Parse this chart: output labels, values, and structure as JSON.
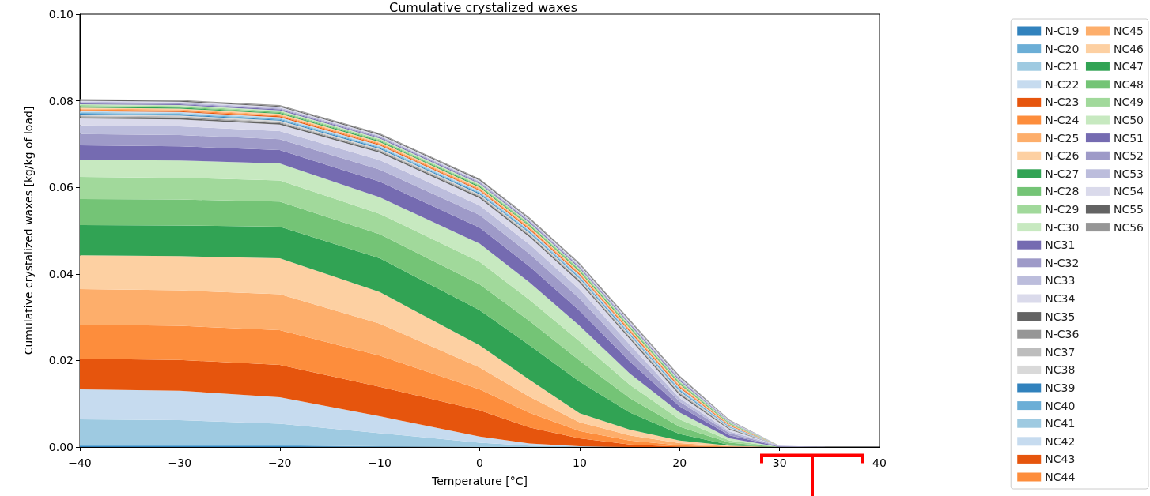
{
  "chart_data": {
    "type": "area",
    "stacked": true,
    "title": "Cumulative crystalized waxes",
    "xlabel": "Temperature [°C]",
    "ylabel": "Cumulative crystalized waxes [kg/kg of load]",
    "x": [
      -40,
      -30,
      -20,
      -10,
      0,
      5,
      10,
      15,
      20,
      25,
      30,
      35,
      40
    ],
    "xlim": [
      -40,
      40
    ],
    "xticks": [
      {
        "value": -40,
        "label": "−40"
      },
      {
        "value": -30,
        "label": "−30"
      },
      {
        "value": -20,
        "label": "−20"
      },
      {
        "value": -10,
        "label": "−10"
      },
      0,
      10,
      20,
      30,
      40
    ],
    "ylim": [
      0,
      0.1
    ],
    "yticks": [
      {
        "value": 0,
        "label": "0.00"
      },
      {
        "value": 0.02,
        "label": "0.02"
      },
      {
        "value": 0.04,
        "label": "0.04"
      },
      {
        "value": 0.06,
        "label": "0.06"
      },
      {
        "value": 0.08,
        "label": "0.08"
      },
      {
        "value": 0.1,
        "label": "0.10"
      }
    ],
    "grid": false,
    "legend": "right",
    "series": [
      {
        "name": "N-C19",
        "color": "#3182bd",
        "values": [
          0.0002,
          0.0002,
          0.0002,
          0.0001,
          0,
          0,
          0,
          0,
          0,
          0,
          0,
          0,
          0
        ]
      },
      {
        "name": "N-C20",
        "color": "#6baed6",
        "values": [
          0.0002,
          0.0002,
          0.0002,
          0.0001,
          0,
          0,
          0,
          0,
          0,
          0,
          0,
          0,
          0
        ]
      },
      {
        "name": "N-C21",
        "color": "#9ecae1",
        "values": [
          0.006,
          0.0058,
          0.005,
          0.003,
          0.001,
          0.0003,
          0.0001,
          0,
          0,
          0,
          0,
          0,
          0
        ]
      },
      {
        "name": "N-C22",
        "color": "#c6dbef",
        "values": [
          0.0069,
          0.0068,
          0.0061,
          0.0039,
          0.0014,
          0.0005,
          0.0001,
          0,
          0,
          0,
          0,
          0,
          0
        ]
      },
      {
        "name": "N-C23",
        "color": "#e6550d",
        "values": [
          0.0071,
          0.0071,
          0.0075,
          0.0068,
          0.0061,
          0.0037,
          0.0018,
          0.0006,
          0.0001,
          0,
          0,
          0,
          0
        ]
      },
      {
        "name": "N-C24",
        "color": "#fd8d3c",
        "values": [
          0.0079,
          0.0079,
          0.008,
          0.0072,
          0.0048,
          0.0034,
          0.0017,
          0.0009,
          0.0003,
          0.0001,
          0,
          0,
          0
        ]
      },
      {
        "name": "N-C25",
        "color": "#fdae6b",
        "values": [
          0.0082,
          0.0082,
          0.0083,
          0.0074,
          0.0051,
          0.0037,
          0.002,
          0.0012,
          0.0005,
          0.0001,
          0,
          0,
          0
        ]
      },
      {
        "name": "N-C26",
        "color": "#fdd0a2",
        "values": [
          0.0078,
          0.0079,
          0.0083,
          0.0073,
          0.0051,
          0.0039,
          0.0021,
          0.0013,
          0.0006,
          0.0001,
          0,
          0,
          0
        ]
      },
      {
        "name": "N-C27",
        "color": "#31a354",
        "values": [
          0.007,
          0.0071,
          0.0073,
          0.0078,
          0.0081,
          0.008,
          0.0073,
          0.004,
          0.0015,
          0.0002,
          0,
          0,
          0
        ]
      },
      {
        "name": "N-C28",
        "color": "#74c476",
        "values": [
          0.006,
          0.006,
          0.0058,
          0.0056,
          0.006,
          0.0056,
          0.0049,
          0.0033,
          0.0017,
          0.0005,
          0,
          0,
          0
        ]
      },
      {
        "name": "N-C29",
        "color": "#a1d99b",
        "values": [
          0.0051,
          0.005,
          0.0049,
          0.0047,
          0.0052,
          0.0049,
          0.0044,
          0.0031,
          0.0017,
          0.0005,
          0,
          0,
          0
        ]
      },
      {
        "name": "N-C30",
        "color": "#c7e9c0",
        "values": [
          0.004,
          0.004,
          0.0039,
          0.0038,
          0.0042,
          0.004,
          0.0036,
          0.0026,
          0.0016,
          0.0005,
          0,
          0,
          0
        ]
      },
      {
        "name": "NC31",
        "color": "#756bb1",
        "values": [
          0.0033,
          0.0033,
          0.0031,
          0.0036,
          0.0037,
          0.0037,
          0.0035,
          0.0028,
          0.0014,
          0.0007,
          0.0001,
          0,
          0
        ]
      },
      {
        "name": "N-C32",
        "color": "#9e9ac8",
        "values": [
          0.0026,
          0.0026,
          0.0025,
          0.0028,
          0.0029,
          0.0029,
          0.0028,
          0.0022,
          0.0011,
          0.0005,
          0.0001,
          0,
          0
        ]
      },
      {
        "name": "NC33",
        "color": "#bcbddc",
        "values": [
          0.002,
          0.002,
          0.0019,
          0.0022,
          0.0022,
          0.0022,
          0.0021,
          0.0017,
          0.0008,
          0.0004,
          0.0001,
          0,
          0
        ]
      },
      {
        "name": "NC34",
        "color": "#dadaeb",
        "values": [
          0.0016,
          0.0016,
          0.0015,
          0.0017,
          0.0017,
          0.0017,
          0.0016,
          0.0013,
          0.0007,
          0.0004,
          0,
          0,
          0
        ]
      },
      {
        "name": "NC35",
        "color": "#636363",
        "values": [
          0.0003,
          0.0003,
          0.0003,
          0.0003,
          0.0003,
          0.0003,
          0.0003,
          0.0003,
          0.0003,
          0.0002,
          0,
          0,
          0
        ]
      },
      {
        "name": "N-C36",
        "color": "#969696",
        "values": [
          0.0002,
          0.0002,
          0.0002,
          0.0002,
          0.0002,
          0.0002,
          0.0002,
          0.0002,
          0.0002,
          0.0001,
          0,
          0,
          0
        ]
      },
      {
        "name": "NC37",
        "color": "#bdbdbd",
        "values": [
          0.0002,
          0.0002,
          0.0002,
          0.0002,
          0.0002,
          0.0002,
          0.0002,
          0.0002,
          0.0002,
          0.0001,
          0,
          0,
          0
        ]
      },
      {
        "name": "NC38",
        "color": "#d9d9d9",
        "values": [
          0.0002,
          0.0002,
          0.0002,
          0.0002,
          0.0002,
          0.0002,
          0.0002,
          0.0002,
          0.0002,
          0.0001,
          0,
          0,
          0
        ]
      },
      {
        "name": "NC39",
        "color": "#3182bd",
        "values": [
          0.0002,
          0.0002,
          0.0002,
          0.0002,
          0.0002,
          0.0002,
          0.0002,
          0.0002,
          0.0002,
          0.0001,
          0,
          0,
          0
        ]
      },
      {
        "name": "NC40",
        "color": "#6baed6",
        "values": [
          0.0002,
          0.0002,
          0.0002,
          0.0002,
          0.0002,
          0.0002,
          0.0002,
          0.0002,
          0.0002,
          0.0001,
          0,
          0,
          0
        ]
      },
      {
        "name": "NC41",
        "color": "#9ecae1",
        "values": [
          0.0002,
          0.0002,
          0.0002,
          0.0002,
          0.0002,
          0.0002,
          0.0002,
          0.0002,
          0.0002,
          0.0001,
          0,
          0,
          0
        ]
      },
      {
        "name": "NC42",
        "color": "#c6dbef",
        "values": [
          0.0002,
          0.0002,
          0.0002,
          0.0002,
          0.0002,
          0.0002,
          0.0002,
          0.0002,
          0.0002,
          0.0001,
          0,
          0,
          0
        ]
      },
      {
        "name": "NC43",
        "color": "#e6550d",
        "values": [
          0.0002,
          0.0002,
          0.0002,
          0.0002,
          0.0002,
          0.0002,
          0.0002,
          0.0002,
          0.0002,
          0.0001,
          0,
          0,
          0
        ]
      },
      {
        "name": "NC44",
        "color": "#fd8d3c",
        "values": [
          0.0002,
          0.0002,
          0.0002,
          0.0002,
          0.0002,
          0.0002,
          0.0002,
          0.0002,
          0.0002,
          0.0001,
          0,
          0,
          0
        ]
      },
      {
        "name": "NC45",
        "color": "#fdae6b",
        "values": [
          0.0002,
          0.0002,
          0.0002,
          0.0002,
          0.0002,
          0.0002,
          0.0002,
          0.0002,
          0.0002,
          0.0001,
          0,
          0,
          0
        ]
      },
      {
        "name": "NC46",
        "color": "#fdd0a2",
        "values": [
          0.0002,
          0.0002,
          0.0002,
          0.0002,
          0.0002,
          0.0002,
          0.0002,
          0.0002,
          0.0002,
          0.0001,
          0,
          0,
          0
        ]
      },
      {
        "name": "NC47",
        "color": "#31a354",
        "values": [
          0.0002,
          0.0002,
          0.0002,
          0.0002,
          0.0002,
          0.0002,
          0.0002,
          0.0002,
          0.0002,
          0.0001,
          0,
          0,
          0
        ]
      },
      {
        "name": "NC48",
        "color": "#74c476",
        "values": [
          0.0002,
          0.0002,
          0.0002,
          0.0002,
          0.0002,
          0.0002,
          0.0002,
          0.0002,
          0.0002,
          0.0001,
          0,
          0,
          0
        ]
      },
      {
        "name": "NC49",
        "color": "#a1d99b",
        "values": [
          0.0002,
          0.0002,
          0.0002,
          0.0002,
          0.0002,
          0.0002,
          0.0002,
          0.0002,
          0.0002,
          0.0001,
          0,
          0,
          0
        ]
      },
      {
        "name": "NC50",
        "color": "#c7e9c0",
        "values": [
          0.0002,
          0.0002,
          0.0002,
          0.0002,
          0.0002,
          0.0002,
          0.0002,
          0.0002,
          0.0002,
          0.0001,
          0,
          0,
          0
        ]
      },
      {
        "name": "NC51",
        "color": "#756bb1",
        "values": [
          0.0002,
          0.0002,
          0.0002,
          0.0002,
          0.0002,
          0.0002,
          0.0002,
          0.0002,
          0.0002,
          0.0001,
          0,
          0,
          0
        ]
      },
      {
        "name": "NC52",
        "color": "#9e9ac8",
        "values": [
          0.0002,
          0.0002,
          0.0002,
          0.0002,
          0.0002,
          0.0002,
          0.0002,
          0.0002,
          0.0002,
          0.0001,
          0,
          0,
          0
        ]
      },
      {
        "name": "NC53",
        "color": "#bcbddc",
        "values": [
          0.0002,
          0.0002,
          0.0002,
          0.0002,
          0.0002,
          0.0002,
          0.0002,
          0.0002,
          0.0002,
          0.0001,
          0,
          0,
          0
        ]
      },
      {
        "name": "NC54",
        "color": "#dadaeb",
        "values": [
          0.0002,
          0.0002,
          0.0002,
          0.0002,
          0.0002,
          0.0002,
          0.0002,
          0.0002,
          0.0002,
          0.0001,
          0,
          0,
          0
        ]
      },
      {
        "name": "NC55",
        "color": "#636363",
        "values": [
          0.0002,
          0.0002,
          0.0002,
          0.0002,
          0.0002,
          0.0002,
          0.0002,
          0.0002,
          0.0002,
          0.0001,
          0,
          0,
          0
        ]
      },
      {
        "name": "NC56",
        "color": "#969696",
        "values": [
          0.0002,
          0.0002,
          0.0002,
          0.0002,
          0.0002,
          0.0002,
          0.0002,
          0.0002,
          0.0002,
          0.0001,
          0,
          0,
          0
        ]
      }
    ]
  }
}
